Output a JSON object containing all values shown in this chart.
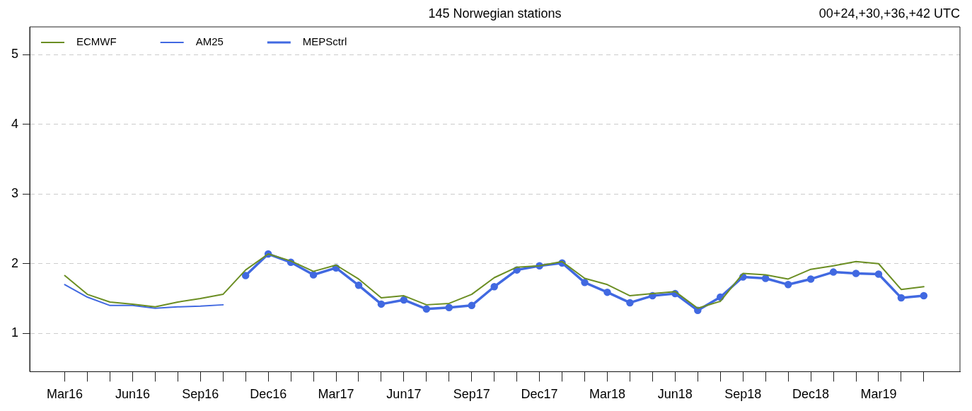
{
  "chart_data": {
    "type": "line",
    "title": "145 Norwegian stations",
    "subtitle": "00+24,+30,+36,+42 UTC",
    "categories": [
      "Mar16",
      null,
      null,
      "Jun16",
      null,
      null,
      "Sep16",
      null,
      null,
      "Dec16",
      null,
      null,
      "Mar17",
      null,
      null,
      "Jun17",
      null,
      null,
      "Sep17",
      null,
      null,
      "Dec17",
      null,
      null,
      "Mar18",
      null,
      null,
      "Jun18",
      null,
      null,
      "Sep18",
      null,
      null,
      "Dec18",
      null,
      null,
      "Mar19",
      null,
      null
    ],
    "series": [
      {
        "name": "ECMWF",
        "color": "#6b8e23",
        "marker": "none",
        "values": [
          1.83,
          1.56,
          1.45,
          1.42,
          1.38,
          1.45,
          1.5,
          1.56,
          1.91,
          2.14,
          2.04,
          1.89,
          1.98,
          1.78,
          1.51,
          1.54,
          1.41,
          1.43,
          1.56,
          1.8,
          1.95,
          1.97,
          2.03,
          1.79,
          1.7,
          1.54,
          1.57,
          1.6,
          1.36,
          1.46,
          1.86,
          1.84,
          1.78,
          1.92,
          1.97,
          2.03,
          2.0,
          1.63,
          1.67
        ]
      },
      {
        "name": "AM25",
        "color": "#4169e1",
        "marker": "none",
        "values": [
          1.7,
          1.52,
          1.4,
          1.4,
          1.36,
          1.38,
          1.39,
          1.41,
          null,
          null,
          null,
          null,
          null,
          null,
          null,
          null,
          null,
          null,
          null,
          null,
          null,
          null,
          null,
          null,
          null,
          null,
          null,
          null,
          null,
          null,
          null,
          null,
          null,
          null,
          null,
          null,
          null,
          null,
          null
        ]
      },
      {
        "name": "MEPSctrl",
        "color": "#4169e1",
        "marker": "circle",
        "values": [
          null,
          null,
          null,
          null,
          null,
          null,
          null,
          null,
          1.83,
          2.14,
          2.02,
          1.84,
          1.94,
          1.69,
          1.42,
          1.48,
          1.35,
          1.37,
          1.4,
          1.67,
          1.91,
          1.97,
          2.01,
          1.73,
          1.59,
          1.44,
          1.54,
          1.57,
          1.33,
          1.52,
          1.81,
          1.79,
          1.7,
          1.78,
          1.88,
          1.86,
          1.85,
          1.51,
          1.54
        ]
      }
    ],
    "ylim": [
      0.45,
      5.4
    ],
    "yticks": [
      1,
      2,
      3,
      4,
      5
    ],
    "grid": "y",
    "legend": "top left"
  }
}
